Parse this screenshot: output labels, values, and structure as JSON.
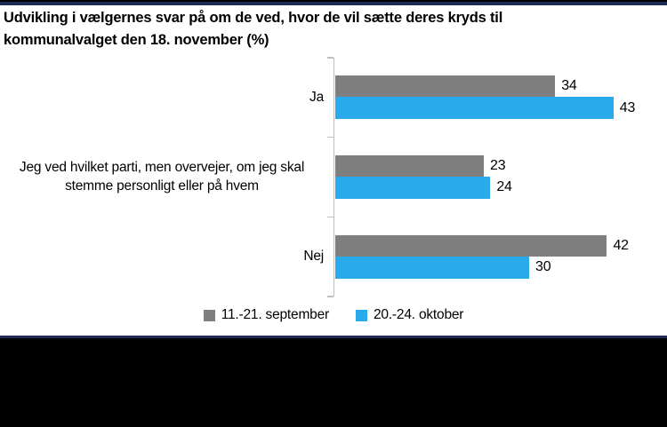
{
  "title": "Udvikling i vælgernes svar på om de ved, hvor de vil sætte deres kryds til kommunalvalget den 18. november (%)",
  "chart_data": {
    "type": "bar",
    "orientation": "horizontal",
    "categories": [
      "Ja",
      "Jeg ved hvilket parti, men overvejer, om jeg skal stemme personligt eller på hvem",
      "Nej"
    ],
    "series": [
      {
        "name": "11.-21. september",
        "color": "#7F7F7F",
        "values": [
          34,
          23,
          42
        ]
      },
      {
        "name": "20.-24. oktober",
        "color": "#29AAEB",
        "values": [
          43,
          24,
          30
        ]
      }
    ],
    "value_labels": true,
    "xlim": [
      0,
      51.2
    ],
    "grid": false,
    "legend_position": "bottom",
    "axis_color": "#BFBFBF"
  },
  "frame": {
    "border_color": "#1F2A56",
    "footer_color": "#000000",
    "top_strip_color": "#000000"
  }
}
